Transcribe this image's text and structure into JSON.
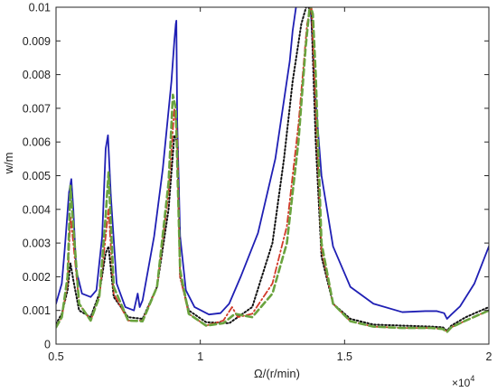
{
  "chart_data": {
    "type": "line",
    "title": "",
    "xlabel": "Ω/(r/min)",
    "ylabel": "w/m",
    "x_exponent_base": "×10",
    "x_exponent": "4",
    "xlim": [
      0.5,
      2.0
    ],
    "ylim": [
      0,
      0.01
    ],
    "x_ticks": [
      0.5,
      1.0,
      1.5,
      2.0
    ],
    "x_tick_labels": [
      "0.5",
      "1",
      "1.5",
      "2"
    ],
    "y_ticks": [
      0,
      0.001,
      0.002,
      0.003,
      0.004,
      0.005,
      0.006,
      0.007,
      0.008,
      0.009,
      0.01
    ],
    "y_tick_labels": [
      "0",
      "0.001",
      "0.002",
      "0.003",
      "0.004",
      "0.005",
      "0.006",
      "0.007",
      "0.008",
      "0.009",
      "0.01"
    ],
    "grid": false,
    "legend": "none",
    "series": [
      {
        "color": "#1f1fb4",
        "style": "solid",
        "x": [
          0.5,
          0.52,
          0.53,
          0.545,
          0.553,
          0.56,
          0.57,
          0.59,
          0.62,
          0.64,
          0.66,
          0.672,
          0.68,
          0.69,
          0.71,
          0.74,
          0.77,
          0.783,
          0.79,
          0.8,
          0.84,
          0.87,
          0.9,
          0.91,
          0.915,
          0.917,
          0.92,
          0.93,
          0.95,
          0.98,
          1.03,
          1.07,
          1.1,
          1.14,
          1.2,
          1.26,
          1.31,
          1.32,
          1.335,
          1.35,
          1.37,
          1.38,
          1.385,
          1.39,
          1.4,
          1.42,
          1.46,
          1.52,
          1.6,
          1.7,
          1.78,
          1.82,
          1.845,
          1.855,
          1.87,
          1.9,
          1.95,
          2.0
        ],
        "y": [
          0.0012,
          0.0018,
          0.0028,
          0.0045,
          0.0049,
          0.004,
          0.0022,
          0.0015,
          0.0014,
          0.0016,
          0.0032,
          0.0058,
          0.0062,
          0.0044,
          0.0018,
          0.0011,
          0.001,
          0.0015,
          0.0011,
          0.0013,
          0.0032,
          0.0052,
          0.0078,
          0.009,
          0.0095,
          0.0096,
          0.0066,
          0.0032,
          0.0016,
          0.0011,
          0.00088,
          0.00092,
          0.0012,
          0.002,
          0.0033,
          0.0055,
          0.0084,
          0.0093,
          0.0102,
          0.0108,
          0.0108,
          0.0103,
          0.0096,
          0.0088,
          0.0072,
          0.005,
          0.0029,
          0.0017,
          0.0012,
          0.00095,
          0.00098,
          0.00098,
          0.00092,
          0.00075,
          0.00088,
          0.00112,
          0.0018,
          0.0029
        ]
      },
      {
        "color": "#111111",
        "style": "dotted",
        "x": [
          0.5,
          0.52,
          0.54,
          0.55,
          0.56,
          0.58,
          0.62,
          0.65,
          0.672,
          0.682,
          0.7,
          0.75,
          0.8,
          0.85,
          0.89,
          0.91,
          0.92,
          0.93,
          0.96,
          1.02,
          1.1,
          1.18,
          1.25,
          1.29,
          1.32,
          1.35,
          1.37,
          1.385,
          1.4,
          1.42,
          1.46,
          1.52,
          1.6,
          1.7,
          1.8,
          1.84,
          1.855,
          1.87,
          1.92,
          2.0
        ],
        "y": [
          0.0006,
          0.0009,
          0.0016,
          0.0024,
          0.0019,
          0.001,
          0.0008,
          0.0015,
          0.0027,
          0.0029,
          0.0014,
          0.0008,
          0.00075,
          0.0017,
          0.004,
          0.0062,
          0.006,
          0.002,
          0.001,
          0.00065,
          0.00062,
          0.0011,
          0.003,
          0.0055,
          0.0078,
          0.0095,
          0.0101,
          0.0098,
          0.006,
          0.0026,
          0.0012,
          0.00075,
          0.00058,
          0.00055,
          0.00052,
          0.0005,
          0.0004,
          0.00055,
          0.0008,
          0.0011
        ]
      },
      {
        "color": "#d23a2a",
        "style": "dashdot",
        "x": [
          0.5,
          0.52,
          0.54,
          0.55,
          0.56,
          0.58,
          0.62,
          0.65,
          0.672,
          0.682,
          0.7,
          0.75,
          0.8,
          0.85,
          0.89,
          0.91,
          0.92,
          0.93,
          0.96,
          1.02,
          1.08,
          1.11,
          1.13,
          1.18,
          1.25,
          1.3,
          1.34,
          1.37,
          1.385,
          1.4,
          1.42,
          1.46,
          1.52,
          1.6,
          1.7,
          1.8,
          1.84,
          1.855,
          1.87,
          1.92,
          2.0
        ],
        "y": [
          0.0005,
          0.0008,
          0.0018,
          0.0038,
          0.003,
          0.0012,
          0.0007,
          0.0014,
          0.0032,
          0.004,
          0.0015,
          0.0007,
          0.0007,
          0.0017,
          0.0045,
          0.007,
          0.0062,
          0.002,
          0.0009,
          0.00055,
          0.0007,
          0.0011,
          0.0008,
          0.0009,
          0.0018,
          0.0035,
          0.0065,
          0.0095,
          0.0101,
          0.007,
          0.0028,
          0.0012,
          0.00068,
          0.00052,
          0.00048,
          0.00048,
          0.00045,
          0.00038,
          0.0005,
          0.0007,
          0.001
        ]
      },
      {
        "color": "#6aa33e",
        "style": "dashed",
        "x": [
          0.5,
          0.52,
          0.54,
          0.55,
          0.56,
          0.58,
          0.62,
          0.65,
          0.672,
          0.682,
          0.7,
          0.75,
          0.8,
          0.85,
          0.89,
          0.905,
          0.915,
          0.93,
          0.96,
          1.02,
          1.08,
          1.12,
          1.18,
          1.25,
          1.3,
          1.34,
          1.365,
          1.38,
          1.39,
          1.4,
          1.42,
          1.46,
          1.52,
          1.6,
          1.7,
          1.8,
          1.84,
          1.855,
          1.87,
          1.92,
          2.0
        ],
        "y": [
          0.0005,
          0.0008,
          0.002,
          0.0047,
          0.0035,
          0.0012,
          0.0007,
          0.0014,
          0.0038,
          0.0051,
          0.0017,
          0.0007,
          0.00068,
          0.0017,
          0.0048,
          0.0074,
          0.007,
          0.0022,
          0.0009,
          0.00055,
          0.00062,
          0.0009,
          0.0008,
          0.0015,
          0.003,
          0.006,
          0.0088,
          0.0101,
          0.0098,
          0.008,
          0.003,
          0.0012,
          0.00068,
          0.00052,
          0.00048,
          0.00048,
          0.00045,
          0.00036,
          0.0005,
          0.0007,
          0.001
        ]
      }
    ]
  }
}
